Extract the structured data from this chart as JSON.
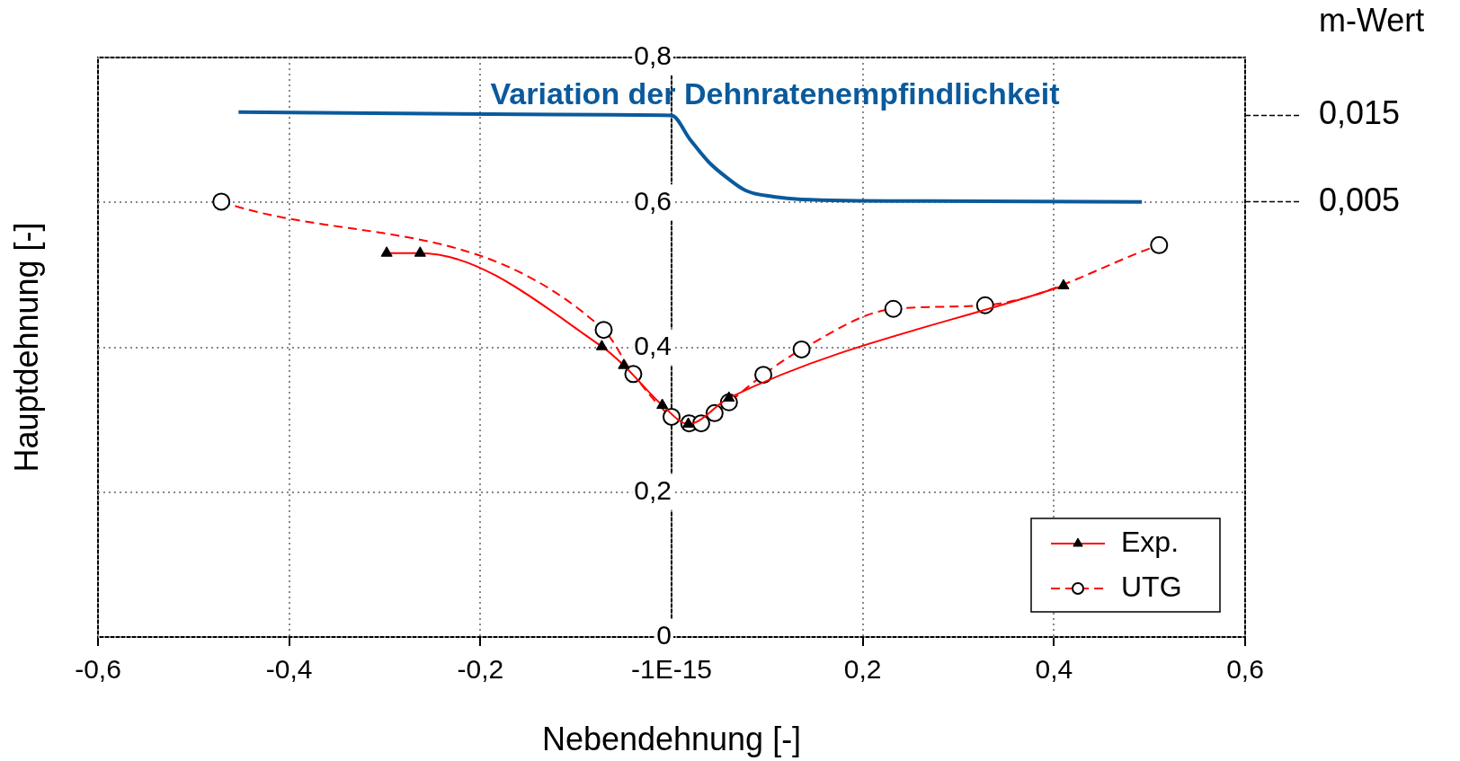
{
  "chart_data": {
    "type": "line",
    "xlabel": "Nebendehnung [-]",
    "ylabel": "Hauptdehnung [-]",
    "y2label": "m-Wert",
    "xlim": [
      -0.6,
      0.6
    ],
    "xticks": [
      {
        "value": -0.6,
        "label": "-0,6"
      },
      {
        "value": -0.4,
        "label": "-0,4"
      },
      {
        "value": -0.2,
        "label": "-0,2"
      },
      {
        "value": 0,
        "label": "-1E-15"
      },
      {
        "value": 0.2,
        "label": "0,2"
      },
      {
        "value": 0.4,
        "label": "0,4"
      },
      {
        "value": 0.6,
        "label": "0,6"
      }
    ],
    "ylim": [
      0,
      0.8
    ],
    "yticks": [
      0,
      {
        "value": 0.2,
        "label": "0,2"
      },
      {
        "value": 0.4,
        "label": "0,4"
      },
      {
        "value": 0.6,
        "label": "0,6"
      },
      {
        "value": 0.8,
        "label": "0,8"
      }
    ],
    "y2lim": [
      -0.0453,
      0.0217
    ],
    "y2ticks": [
      {
        "value": 0.015,
        "label": "0,015"
      },
      {
        "value": 0.005,
        "label": "0,005"
      }
    ],
    "grid": true,
    "legend": "bottom right",
    "series": [
      {
        "name": "Exp.",
        "color": "#ff0000",
        "marker": "triangle",
        "line_style": "solid",
        "x": [
          -0.298,
          -0.263,
          -0.073,
          -0.05,
          -0.0097,
          0.0175,
          0.06,
          0.41
        ],
        "values": [
          0.53,
          0.53,
          0.401,
          0.375,
          0.32,
          0.294,
          0.33,
          0.485
        ]
      },
      {
        "name": "UTG",
        "color": "#ff0000",
        "marker": "circle",
        "line_style": "dashed",
        "x": [
          -0.471,
          -0.071,
          -0.04,
          0,
          0.0185,
          0.031,
          0.045,
          0.06,
          0.096,
          0.136,
          0.232,
          0.328,
          0.51
        ],
        "values": [
          0.601,
          0.424,
          0.363,
          0.304,
          0.295,
          0.295,
          0.309,
          0.324,
          0.362,
          0.397,
          0.453,
          0.458,
          0.541
        ]
      },
      {
        "name": "Variation der Dehnratenempfindlichkeit",
        "color": "#0a5a9c",
        "marker": "none",
        "line_style": "solid",
        "axis": "y2",
        "x": [
          -0.453,
          -0.12,
          0,
          0.0195,
          0.039,
          0.058,
          0.078,
          0.107,
          0.136,
          0.273,
          0.492
        ],
        "values": [
          0.0154,
          0.0151,
          0.015,
          0.0122,
          0.0096,
          0.0078,
          0.0063,
          0.0056,
          0.0053,
          0.0051,
          0.005
        ]
      }
    ]
  }
}
